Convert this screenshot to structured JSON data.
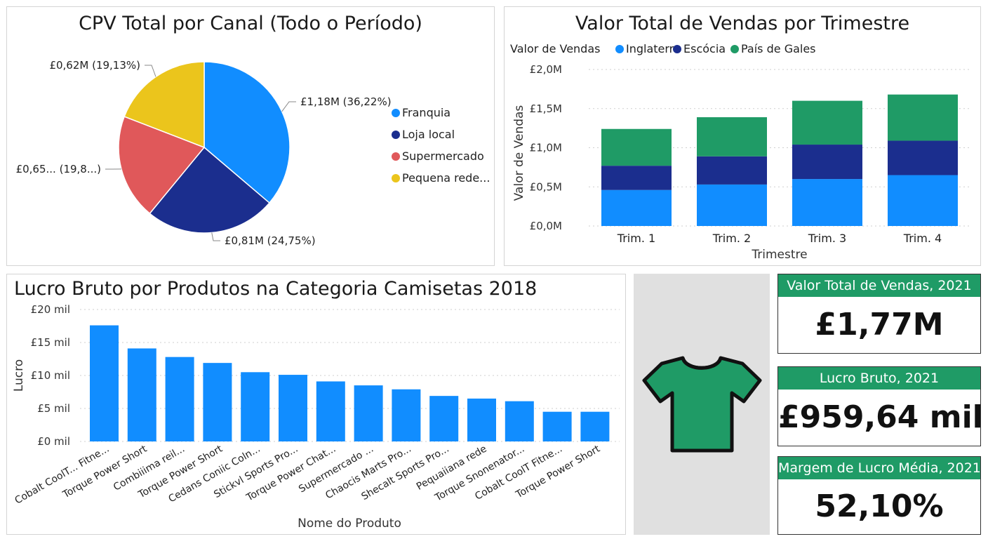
{
  "colors": {
    "franquia": "#118DFF",
    "loja_local": "#1B2E8E",
    "supermercado": "#E0585A",
    "pequena_rede": "#EBC51C",
    "inglaterra": "#118DFF",
    "escocia": "#1B2E8E",
    "pais_de_gales": "#1F9B66",
    "bar": "#118DFF",
    "kpi_header": "#1F9B66",
    "shirt": "#1F9B66"
  },
  "icons": {
    "shirt": "t-shirt-icon"
  },
  "chart_data": [
    {
      "type": "pie",
      "title": "CPV Total por Canal (Todo o Período)",
      "slices": [
        {
          "name": "Franquia",
          "value": 1.18,
          "percent": 36.22,
          "label": "£1,18M (36,22%)"
        },
        {
          "name": "Loja local",
          "value": 0.81,
          "percent": 24.75,
          "label": "£0,81M (24,75%)"
        },
        {
          "name": "Supermercado",
          "value": 0.65,
          "percent": 19.9,
          "label": "£0,65... (19,8...)"
        },
        {
          "name": "Pequena rede...",
          "value": 0.62,
          "percent": 19.13,
          "label": "£0,62M (19,13%)"
        }
      ],
      "legend": [
        "Franquia",
        "Loja local",
        "Supermercado",
        "Pequena rede..."
      ],
      "legend_position": "right"
    },
    {
      "type": "bar",
      "stacked": true,
      "title": "Valor Total de Vendas por Trimestre",
      "legend_title": "Valor de Vendas",
      "legend_position": "top-left",
      "categories": [
        "Trim. 1",
        "Trim. 2",
        "Trim. 3",
        "Trim. 4"
      ],
      "series": [
        {
          "name": "Inglaterra",
          "values": [
            0.46,
            0.53,
            0.6,
            0.65
          ]
        },
        {
          "name": "Escócia",
          "values": [
            0.31,
            0.36,
            0.44,
            0.44
          ]
        },
        {
          "name": "País de Gales",
          "values": [
            0.47,
            0.5,
            0.56,
            0.59
          ]
        }
      ],
      "xlabel": "Trimestre",
      "ylabel": "Valor de Vendas",
      "ylim": [
        0,
        2.0
      ],
      "yticks": [
        0,
        0.5,
        1.0,
        1.5,
        2.0
      ],
      "yticklabels": [
        "£0,0M",
        "£0,5M",
        "£1,0M",
        "£1,5M",
        "£2,0M"
      ],
      "grid": true
    },
    {
      "type": "bar",
      "title": "Lucro Bruto por Produtos na Categoria Camisetas 2018",
      "categories": [
        "Cobalt CoolT... Fitne...",
        "Torque Power Short",
        "Combiiima reil...",
        "Torque Power Short",
        "Cedans Coniic Coln...",
        "Stickvl Sports Pro...",
        "Torque Power Chat...",
        "Supermercado ...",
        "Chaocis Marts Pro...",
        "Shecalt Sports Pro...",
        "Pequaiiana rede",
        "Torque Snonenator...",
        "Cobalt CoolT Fitne...",
        "Torque Power Short"
      ],
      "values": [
        17.6,
        14.1,
        12.8,
        11.9,
        10.5,
        10.1,
        9.1,
        8.5,
        7.9,
        6.9,
        6.5,
        6.1,
        4.5,
        4.5
      ],
      "xlabel": "Nome do Produto",
      "ylabel": "Lucro",
      "ylim": [
        0,
        20
      ],
      "yticks": [
        0,
        5,
        10,
        15,
        20
      ],
      "yticklabels": [
        "£0 mil",
        "£5 mil",
        "£10 mil",
        "£15 mil",
        "£20 mil"
      ],
      "grid": true
    }
  ],
  "kpis": [
    {
      "title": "Valor Total de Vendas, 2021",
      "value": "£1,77M"
    },
    {
      "title": "Lucro Bruto, 2021",
      "value": "£959,64 mil"
    },
    {
      "title": "Margem de Lucro Média, 2021",
      "value": "52,10%"
    }
  ]
}
